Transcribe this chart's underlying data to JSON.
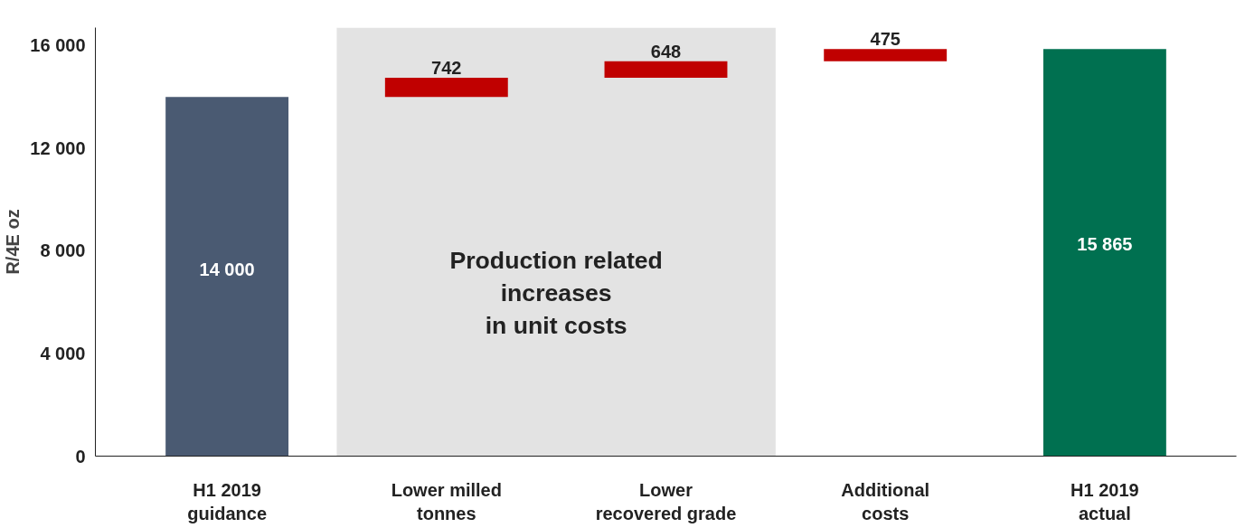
{
  "chart_data": {
    "type": "bar",
    "ylabel": "R/4E oz",
    "categories": [
      "H1 2019 guidance",
      "Lower milled tonnes",
      "Lower recovered grade",
      "Additional costs",
      "H1 2019 actual"
    ],
    "values": [
      14000,
      742,
      648,
      475,
      15865
    ],
    "base": [
      0,
      14000,
      14742,
      15390,
      0
    ],
    "colors": [
      "#4a5a72",
      "#c00000",
      "#c00000",
      "#c00000",
      "#007050"
    ],
    "value_labels": [
      "14 000",
      "742",
      "648",
      "475",
      "15 865"
    ],
    "ylim": [
      0,
      16700
    ],
    "yticks": [
      {
        "value": 0,
        "label": "0"
      },
      {
        "value": 4000,
        "label": "4 000"
      },
      {
        "value": 8000,
        "label": "8 000"
      },
      {
        "value": 12000,
        "label": "12 000"
      },
      {
        "value": 16000,
        "label": "16 000"
      }
    ],
    "bands": [
      {
        "axis": "x",
        "from": "Lower milled tonnes",
        "to": "Lower recovered grade",
        "label": "Production related\nincreases\nin unit costs",
        "color": "#e3e3e3"
      }
    ],
    "grid": false
  }
}
